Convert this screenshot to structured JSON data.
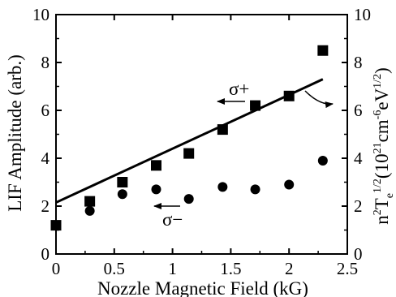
{
  "chart_data": {
    "type": "scatter",
    "xlabel": "Nozzle Magnetic Field (kG)",
    "ylabel_left": "LIF Amplitude (arb.)",
    "ylabel_right": {
      "base1": "n",
      "sup1": "2",
      "base2": "T",
      "sub2": "e",
      "sup2": "1/2",
      "open": "(10",
      "sup3": "21",
      "mid": "cm",
      "sup4": "-6",
      "mid2": "eV",
      "sup5": "1/2",
      "close": ")"
    },
    "xlim": [
      0,
      2.5
    ],
    "ylim_left": [
      0,
      10
    ],
    "ylim_right": [
      0,
      10
    ],
    "x_ticks": [
      "0",
      "0.5",
      "1",
      "1.5",
      "2",
      "2.5"
    ],
    "x_tick_values": [
      0,
      0.5,
      1,
      1.5,
      2,
      2.5
    ],
    "y_ticks_left": [
      "0",
      "2",
      "4",
      "6",
      "8",
      "10"
    ],
    "y_ticks_right": [
      "0",
      "2",
      "4",
      "6",
      "8",
      "10"
    ],
    "y_tick_values": [
      0,
      2,
      4,
      6,
      8,
      10
    ],
    "series": [
      {
        "marker": "square",
        "x": [
          0,
          0.29,
          0.57,
          0.86,
          1.14,
          1.43,
          1.71,
          2.0,
          2.29
        ],
        "y": [
          1.2,
          2.2,
          3.0,
          3.7,
          4.2,
          5.2,
          6.2,
          6.6,
          8.5
        ]
      },
      {
        "marker": "circle",
        "x": [
          0.29,
          0.57,
          0.86,
          1.14,
          1.43,
          1.71,
          2.0,
          2.29
        ],
        "y": [
          1.8,
          2.5,
          2.7,
          2.3,
          2.8,
          2.7,
          2.9,
          3.9
        ]
      }
    ],
    "fit_line": {
      "x": [
        0,
        2.29
      ],
      "y": [
        2.15,
        7.3
      ]
    },
    "annotations": {
      "sigma_plus": "σ+",
      "sigma_minus": "σ−"
    }
  }
}
